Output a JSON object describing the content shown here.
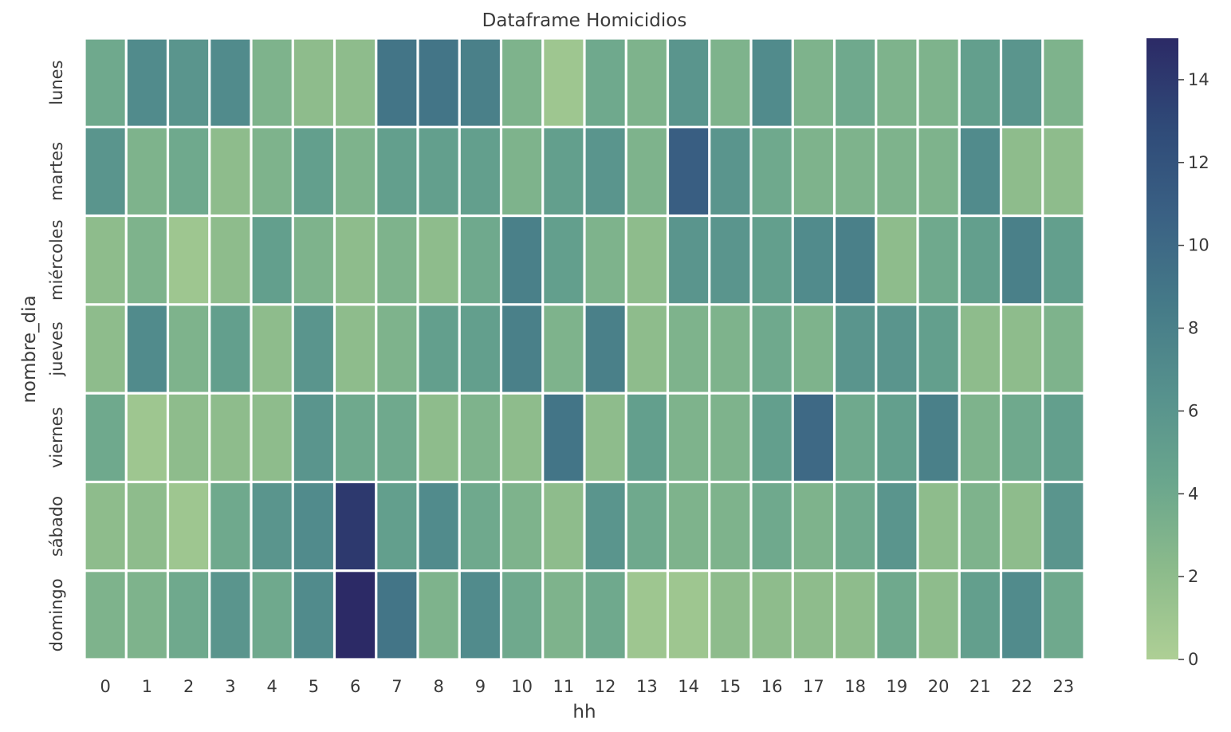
{
  "chart_data": {
    "type": "heatmap",
    "title": "Dataframe Homicidios",
    "xlabel": "hh",
    "ylabel": "nombre_dia",
    "x": [
      "0",
      "1",
      "2",
      "3",
      "4",
      "5",
      "6",
      "7",
      "8",
      "9",
      "10",
      "11",
      "12",
      "13",
      "14",
      "15",
      "16",
      "17",
      "18",
      "19",
      "20",
      "21",
      "22",
      "23"
    ],
    "y": [
      "lunes",
      "martes",
      "miércoles",
      "jueves",
      "viernes",
      "sábado",
      "domingo"
    ],
    "values": [
      [
        4,
        7,
        6,
        7,
        3,
        2,
        2,
        9,
        9,
        8,
        3,
        1,
        4,
        3,
        6,
        3,
        7,
        3,
        4,
        3,
        3,
        5,
        6,
        3
      ],
      [
        6,
        3,
        4,
        2,
        3,
        5,
        3,
        5,
        5,
        5,
        3,
        5,
        6,
        3,
        11,
        6,
        4,
        3,
        3,
        3,
        3,
        7,
        2,
        2
      ],
      [
        2,
        3,
        1,
        2,
        5,
        3,
        2,
        3,
        2,
        4,
        8,
        5,
        3,
        2,
        6,
        6,
        5,
        7,
        8,
        2,
        4,
        5,
        8,
        5
      ],
      [
        2,
        7,
        3,
        5,
        2,
        6,
        2,
        3,
        5,
        5,
        8,
        3,
        8,
        2,
        3,
        3,
        4,
        3,
        6,
        6,
        5,
        2,
        2,
        3
      ],
      [
        4,
        1,
        2,
        2,
        2,
        6,
        4,
        4,
        2,
        3,
        2,
        9,
        2,
        5,
        3,
        3,
        5,
        10,
        4,
        5,
        8,
        3,
        4,
        5
      ],
      [
        2,
        2,
        1,
        4,
        6,
        7,
        14,
        5,
        7,
        4,
        3,
        2,
        6,
        4,
        3,
        3,
        4,
        3,
        4,
        6,
        2,
        3,
        2,
        6
      ],
      [
        3,
        3,
        4,
        6,
        4,
        7,
        15,
        9,
        3,
        7,
        4,
        3,
        4,
        1,
        1,
        2,
        2,
        2,
        2,
        4,
        2,
        5,
        7,
        4
      ]
    ],
    "colorbar": {
      "min": 0,
      "max": 15,
      "ticks": [
        0,
        2,
        4,
        6,
        8,
        10,
        12,
        14
      ]
    },
    "colors": [
      "#aecf95",
      "#8cbb8b",
      "#6aa68d",
      "#56918d",
      "#457a88",
      "#3a6184",
      "#2f4a78",
      "#2c2a66"
    ],
    "grid_lines_color": "#ffffff"
  }
}
